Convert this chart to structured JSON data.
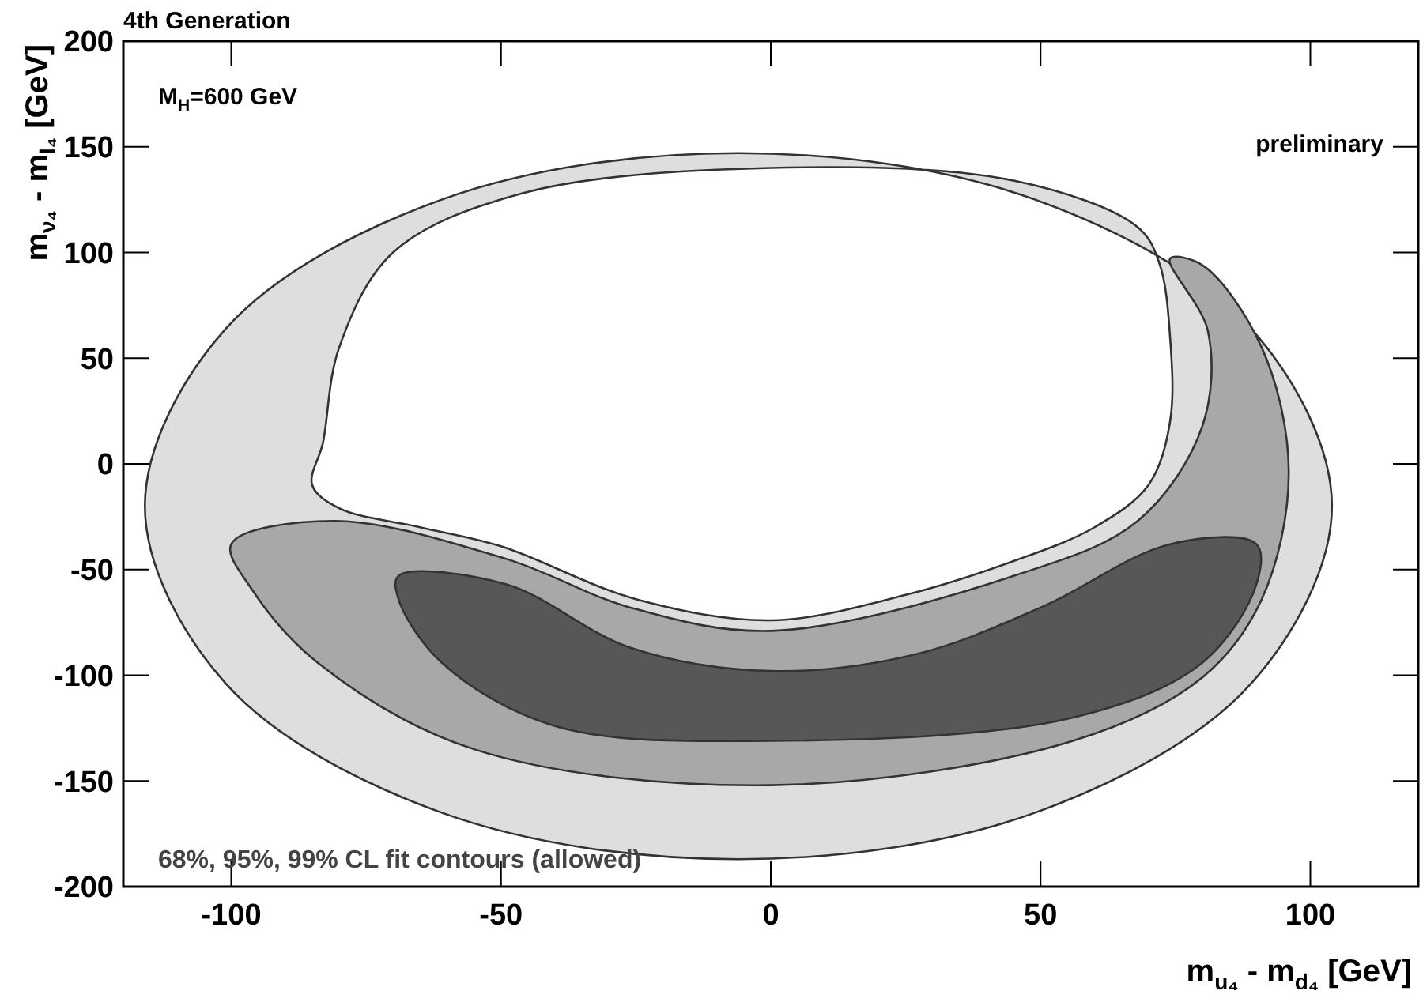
{
  "chart_data": {
    "type": "area",
    "title": "4th Generation",
    "xlabel": "m$_{u₄}$ - m$_{d₄}$ [GeV]",
    "ylabel": "m$_{ν₄}$ - m$_{l₄}$ [GeV]",
    "annotations": [
      "M$_{H}$=600 GeV",
      "preliminary",
      "68%, 95%, 99% CL fit contours (allowed)"
    ],
    "xlim": [
      -120,
      120
    ],
    "xticks": [
      -100,
      -50,
      0,
      50,
      100
    ],
    "ylim": [
      -200,
      200
    ],
    "yticks": [
      -200,
      -150,
      -100,
      -50,
      0,
      50,
      100,
      150,
      200
    ],
    "grid": false,
    "series": [
      {
        "color": "#dedede",
        "x": [
          104,
          89,
          49,
          -6,
          -61,
          -101,
          -116,
          -101,
          -61,
          -6,
          49,
          89,
          null,
          0,
          45,
          68,
          72,
          74,
          74,
          70,
          60,
          45,
          25,
          0,
          -25,
          -50,
          -65,
          -80,
          -85,
          -83,
          -80,
          -70,
          -46
        ],
        "values": [
          -20,
          64,
          125,
          147,
          125,
          64,
          -20,
          -104,
          -165,
          -187,
          -165,
          -104,
          null,
          140,
          134,
          112,
          95,
          60,
          20,
          -10,
          -30,
          -46,
          -62,
          -74,
          -64,
          -39,
          -30,
          -21,
          -10,
          10,
          55,
          100,
          128
        ]
      },
      {
        "color": "#a8a8a8",
        "x": [
          -100,
          -81,
          -49,
          -26,
          0,
          45,
          68,
          80,
          81,
          74,
          80,
          91,
          96,
          91,
          80,
          56,
          0,
          -55,
          -84,
          -96
        ],
        "values": [
          -38,
          -27,
          -45,
          -68,
          -79,
          -53,
          -27,
          18,
          63,
          97,
          94,
          55,
          -4,
          -64,
          -101,
          -131,
          -152,
          -135,
          -94,
          -60
        ]
      },
      {
        "color": "#575757",
        "x": [
          -69,
          -49,
          -26,
          0,
          27,
          50,
          74,
          90,
          90,
          80,
          56,
          0,
          -40,
          -61,
          -69
        ],
        "values": [
          -53,
          -57,
          -87,
          -98,
          -90,
          -68,
          -38,
          -38,
          -57,
          -94,
          -120,
          -131,
          -124,
          -94,
          -64
        ]
      }
    ]
  }
}
